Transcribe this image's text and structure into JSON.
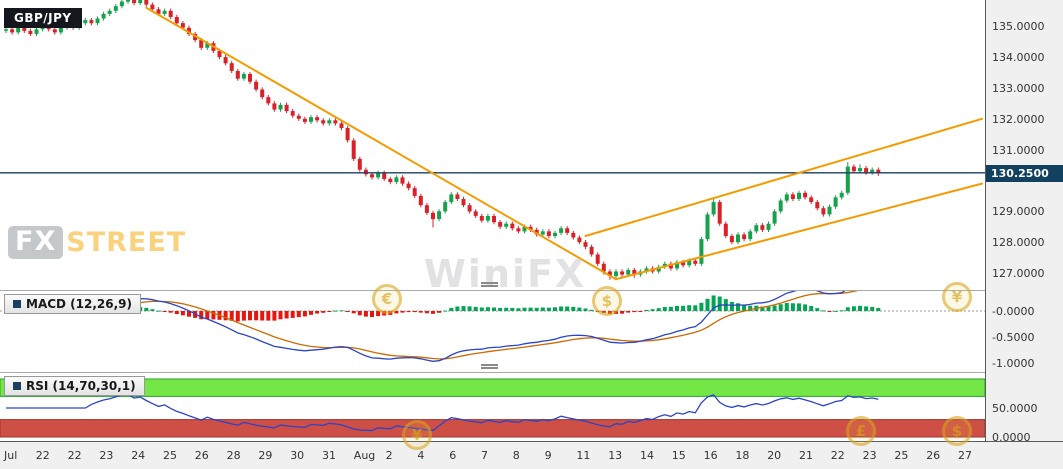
{
  "header": {
    "symbol_label": "GBP/JPY"
  },
  "watermark": {
    "fx": "FX",
    "street": "STREET",
    "name": "WiniFX",
    "coins": [
      "€",
      "$",
      "¥",
      "£",
      "$",
      "¥"
    ]
  },
  "chart_data": {
    "type": "candlestick",
    "symbol": "GBP/JPY",
    "current_price": "130.2500",
    "price_line": 130.25,
    "price_axis_labels": [
      "135.0000",
      "134.0000",
      "133.0000",
      "132.0000",
      "131.0000",
      "129.0000",
      "128.0000",
      "127.0000"
    ],
    "x_axis_labels": [
      "Jul",
      "22",
      "22",
      "23",
      "24",
      "25",
      "26",
      "28",
      "29",
      "30",
      "31",
      "Aug",
      "2",
      "4",
      "6",
      "7",
      "8",
      "9",
      "11",
      "13",
      "14",
      "15",
      "16",
      "18",
      "20",
      "21",
      "22",
      "23",
      "25",
      "26",
      "27"
    ],
    "price_range_visible": [
      126.45,
      135.85
    ],
    "candles": [
      [
        134.85,
        134.97,
        134.78,
        134.9
      ],
      [
        134.9,
        134.97,
        134.73,
        134.8
      ],
      [
        134.8,
        135.02,
        134.73,
        134.95
      ],
      [
        134.95,
        135.02,
        134.78,
        134.85
      ],
      [
        134.85,
        134.92,
        134.68,
        134.75
      ],
      [
        134.75,
        134.97,
        134.68,
        134.9
      ],
      [
        134.9,
        135.07,
        134.83,
        135.0
      ],
      [
        135.0,
        135.07,
        134.83,
        134.9
      ],
      [
        134.9,
        134.97,
        134.73,
        134.8
      ],
      [
        134.8,
        135.02,
        134.73,
        134.95
      ],
      [
        134.95,
        135.12,
        134.88,
        135.05
      ],
      [
        135.05,
        135.12,
        134.88,
        134.95
      ],
      [
        134.95,
        135.17,
        134.88,
        135.1
      ],
      [
        135.1,
        135.27,
        135.03,
        135.2
      ],
      [
        135.2,
        135.27,
        135.03,
        135.1
      ],
      [
        135.1,
        135.32,
        135.03,
        135.25
      ],
      [
        135.25,
        135.47,
        135.18,
        135.4
      ],
      [
        135.4,
        135.57,
        135.33,
        135.5
      ],
      [
        135.5,
        135.72,
        135.43,
        135.65
      ],
      [
        135.65,
        135.87,
        135.58,
        135.8
      ],
      [
        135.8,
        135.95,
        135.73,
        135.9
      ],
      [
        135.9,
        135.95,
        135.68,
        135.75
      ],
      [
        135.75,
        135.92,
        135.68,
        135.85
      ],
      [
        135.85,
        135.92,
        135.63,
        135.7
      ],
      [
        135.7,
        135.77,
        135.48,
        135.55
      ],
      [
        135.55,
        135.62,
        135.33,
        135.4
      ],
      [
        135.4,
        135.57,
        135.33,
        135.5
      ],
      [
        135.5,
        135.57,
        135.23,
        135.3
      ],
      [
        135.3,
        135.37,
        135.03,
        135.1
      ],
      [
        135.1,
        135.17,
        134.88,
        134.95
      ],
      [
        134.95,
        135.02,
        134.68,
        134.75
      ],
      [
        134.75,
        134.82,
        134.48,
        134.55
      ],
      [
        134.55,
        134.62,
        134.23,
        134.3
      ],
      [
        134.3,
        134.52,
        134.23,
        134.45
      ],
      [
        134.45,
        134.52,
        134.13,
        134.2
      ],
      [
        134.2,
        134.27,
        133.93,
        134.0
      ],
      [
        134.0,
        134.07,
        133.73,
        133.8
      ],
      [
        133.8,
        133.87,
        133.48,
        133.55
      ],
      [
        133.55,
        133.62,
        133.23,
        133.3
      ],
      [
        133.3,
        133.52,
        133.23,
        133.45
      ],
      [
        133.45,
        133.52,
        133.13,
        133.2
      ],
      [
        133.2,
        133.27,
        132.88,
        132.95
      ],
      [
        132.95,
        133.02,
        132.63,
        132.7
      ],
      [
        132.7,
        132.77,
        132.43,
        132.5
      ],
      [
        132.5,
        132.57,
        132.23,
        132.3
      ],
      [
        132.3,
        132.52,
        132.23,
        132.45
      ],
      [
        132.45,
        132.52,
        132.18,
        132.25
      ],
      [
        132.25,
        132.32,
        132.03,
        132.1
      ],
      [
        132.1,
        132.17,
        131.93,
        132.0
      ],
      [
        132.0,
        132.07,
        131.83,
        131.9
      ],
      [
        131.9,
        132.12,
        131.83,
        132.05
      ],
      [
        132.05,
        132.12,
        131.88,
        131.95
      ],
      [
        131.95,
        132.02,
        131.78,
        131.85
      ],
      [
        131.85,
        132.02,
        131.78,
        131.95
      ],
      [
        131.95,
        132.02,
        131.78,
        131.85
      ],
      [
        131.85,
        131.92,
        131.63,
        131.7
      ],
      [
        131.7,
        131.77,
        131.23,
        131.3
      ],
      [
        131.3,
        131.37,
        130.63,
        130.7
      ],
      [
        130.7,
        130.77,
        130.28,
        130.35
      ],
      [
        130.35,
        130.42,
        130.13,
        130.2
      ],
      [
        130.2,
        130.27,
        130.03,
        130.1
      ],
      [
        130.1,
        130.32,
        130.03,
        130.25
      ],
      [
        130.25,
        130.32,
        129.98,
        130.05
      ],
      [
        130.05,
        130.12,
        129.88,
        129.95
      ],
      [
        129.95,
        130.17,
        129.88,
        130.1
      ],
      [
        130.1,
        130.17,
        129.83,
        129.9
      ],
      [
        129.9,
        129.97,
        129.68,
        129.75
      ],
      [
        129.75,
        129.82,
        129.43,
        129.5
      ],
      [
        129.5,
        129.57,
        129.13,
        129.2
      ],
      [
        129.2,
        129.27,
        128.88,
        128.95
      ],
      [
        128.95,
        129.02,
        128.48,
        128.75
      ],
      [
        128.75,
        129.07,
        128.68,
        129.0
      ],
      [
        129.0,
        129.37,
        128.93,
        129.3
      ],
      [
        129.3,
        129.62,
        129.23,
        129.55
      ],
      [
        129.55,
        129.62,
        129.33,
        129.4
      ],
      [
        129.4,
        129.47,
        129.13,
        129.2
      ],
      [
        129.2,
        129.27,
        128.93,
        129.0
      ],
      [
        129.0,
        129.07,
        128.78,
        128.85
      ],
      [
        128.85,
        128.92,
        128.63,
        128.7
      ],
      [
        128.7,
        128.92,
        128.63,
        128.85
      ],
      [
        128.85,
        128.92,
        128.58,
        128.65
      ],
      [
        128.65,
        128.72,
        128.43,
        128.5
      ],
      [
        128.5,
        128.67,
        128.43,
        128.6
      ],
      [
        128.6,
        128.67,
        128.38,
        128.45
      ],
      [
        128.45,
        128.52,
        128.28,
        128.35
      ],
      [
        128.35,
        128.57,
        128.28,
        128.5
      ],
      [
        128.5,
        128.57,
        128.33,
        128.4
      ],
      [
        128.4,
        128.47,
        128.18,
        128.25
      ],
      [
        128.25,
        128.42,
        128.18,
        128.35
      ],
      [
        128.35,
        128.42,
        128.13,
        128.2
      ],
      [
        128.2,
        128.37,
        128.13,
        128.3
      ],
      [
        128.3,
        128.52,
        128.23,
        128.45
      ],
      [
        128.45,
        128.52,
        128.23,
        128.3
      ],
      [
        128.3,
        128.37,
        128.08,
        128.15
      ],
      [
        128.15,
        128.22,
        127.93,
        128.0
      ],
      [
        128.0,
        128.07,
        127.78,
        127.85
      ],
      [
        127.85,
        127.92,
        127.53,
        127.6
      ],
      [
        127.6,
        127.67,
        127.23,
        127.3
      ],
      [
        127.3,
        127.37,
        126.95,
        127.05
      ],
      [
        127.05,
        127.12,
        126.78,
        126.9
      ],
      [
        126.9,
        127.12,
        126.8,
        127.05
      ],
      [
        127.05,
        127.12,
        126.82,
        126.95
      ],
      [
        126.95,
        127.17,
        126.88,
        127.1
      ],
      [
        127.1,
        127.17,
        126.85,
        126.95
      ],
      [
        126.95,
        127.12,
        126.88,
        127.05
      ],
      [
        127.05,
        127.22,
        126.98,
        127.15
      ],
      [
        127.15,
        127.22,
        126.98,
        127.05
      ],
      [
        127.05,
        127.27,
        126.98,
        127.2
      ],
      [
        127.2,
        127.37,
        127.13,
        127.3
      ],
      [
        127.3,
        127.37,
        127.08,
        127.15
      ],
      [
        127.15,
        127.42,
        127.08,
        127.35
      ],
      [
        127.35,
        127.42,
        127.18,
        127.25
      ],
      [
        127.25,
        127.47,
        127.18,
        127.4
      ],
      [
        127.4,
        127.47,
        127.23,
        127.3
      ],
      [
        127.3,
        128.17,
        127.23,
        128.1
      ],
      [
        128.1,
        128.97,
        128.03,
        128.9
      ],
      [
        128.9,
        129.42,
        128.83,
        129.3
      ],
      [
        129.3,
        129.37,
        128.53,
        128.6
      ],
      [
        128.6,
        128.67,
        128.13,
        128.2
      ],
      [
        128.2,
        128.27,
        127.93,
        128.0
      ],
      [
        128.0,
        128.32,
        127.93,
        128.25
      ],
      [
        128.25,
        128.32,
        128.03,
        128.1
      ],
      [
        128.1,
        128.42,
        128.03,
        128.35
      ],
      [
        128.35,
        128.62,
        128.28,
        128.55
      ],
      [
        128.55,
        128.62,
        128.33,
        128.4
      ],
      [
        128.4,
        128.67,
        128.33,
        128.6
      ],
      [
        128.6,
        129.07,
        128.53,
        129.0
      ],
      [
        129.0,
        129.42,
        128.93,
        129.35
      ],
      [
        129.35,
        129.62,
        129.28,
        129.55
      ],
      [
        129.55,
        129.62,
        129.33,
        129.4
      ],
      [
        129.4,
        129.67,
        129.33,
        129.6
      ],
      [
        129.6,
        129.67,
        129.38,
        129.45
      ],
      [
        129.45,
        129.52,
        129.23,
        129.3
      ],
      [
        129.3,
        129.37,
        129.03,
        129.1
      ],
      [
        129.1,
        129.17,
        128.83,
        128.9
      ],
      [
        128.9,
        129.22,
        128.83,
        129.15
      ],
      [
        129.15,
        129.52,
        129.08,
        129.45
      ],
      [
        129.45,
        129.67,
        129.38,
        129.6
      ],
      [
        129.6,
        130.6,
        129.53,
        130.45
      ],
      [
        130.45,
        130.52,
        130.23,
        130.3
      ],
      [
        130.3,
        130.52,
        130.23,
        130.4
      ],
      [
        130.4,
        130.47,
        130.18,
        130.25
      ],
      [
        130.25,
        130.42,
        130.18,
        130.35
      ],
      [
        130.35,
        130.42,
        130.15,
        130.25
      ]
    ],
    "trendlines": [
      {
        "name": "descending-resistance",
        "i1": 23,
        "p1": 135.6,
        "i2": 100,
        "p2": 126.8
      },
      {
        "name": "ascending-channel-lower",
        "i1": 100,
        "p1": 126.8,
        "i2": 160,
        "p2": 129.9
      },
      {
        "name": "ascending-channel-upper",
        "i1": 95,
        "p1": 128.2,
        "i2": 160,
        "p2": 132.0
      }
    ],
    "indicators": {
      "macd": {
        "label": "MACD (12,26,9)",
        "params": [
          12,
          26,
          9
        ],
        "axis_labels": [
          "-0.0000",
          "-0.5000",
          "-1.0000"
        ]
      },
      "rsi": {
        "label": "RSI (14,70,30,1)",
        "params": [
          14,
          70,
          30,
          1
        ],
        "overbought": 70,
        "oversold": 30,
        "axis_labels": [
          "50.0000",
          "0.0000"
        ]
      }
    },
    "colors": {
      "up": "#18a14c",
      "down": "#da2128",
      "trend": "#f59b00",
      "price_line": "#1b3f5e",
      "macd_line": "#2b44c8",
      "signal_line": "#cc6a00",
      "hist_up": "#00a651",
      "hist_down": "#e8150d",
      "rsi_line": "#2b44c8",
      "overbought_band": "#74e646",
      "oversold_band": "#cd4f45",
      "band_edge_green": "#27a52a",
      "band_edge_red": "#9e332c"
    }
  }
}
